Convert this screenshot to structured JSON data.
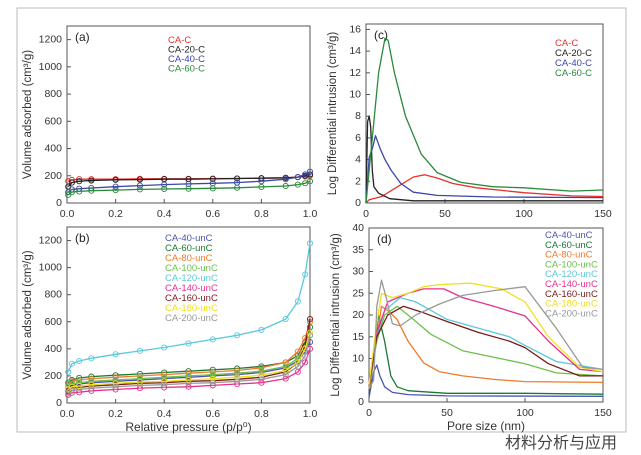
{
  "watermark": "材料分析与应用",
  "chart_data": [
    {
      "panel": "(a)",
      "type": "scatter-line",
      "xlabel": "",
      "ylabel": "Volume adsorbed (cm³/g)",
      "xlim": [
        0,
        1.0
      ],
      "ylim": [
        0,
        1300
      ],
      "xticks": [
        "0.0",
        "0.2",
        "0.4",
        "0.6",
        "0.8",
        "1.0"
      ],
      "yticks": [
        "0",
        "200",
        "400",
        "600",
        "800",
        "1000",
        "1200"
      ],
      "x": [
        0.005,
        0.02,
        0.05,
        0.1,
        0.2,
        0.3,
        0.4,
        0.5,
        0.6,
        0.7,
        0.8,
        0.9,
        0.95,
        0.98,
        1.0
      ],
      "series": [
        {
          "name": "CA-C",
          "color": "#e8322d",
          "values": [
            160,
            170,
            175,
            175,
            175,
            178,
            178,
            178,
            180,
            180,
            182,
            185,
            190,
            195,
            200
          ]
        },
        {
          "name": "CA-20-C",
          "color": "#222222",
          "values": [
            120,
            150,
            160,
            165,
            170,
            172,
            175,
            175,
            177,
            180,
            182,
            185,
            190,
            200,
            210
          ]
        },
        {
          "name": "CA-40-C",
          "color": "#3a48a8",
          "values": [
            80,
            100,
            105,
            110,
            120,
            128,
            135,
            140,
            145,
            150,
            160,
            175,
            190,
            210,
            230
          ]
        },
        {
          "name": "CA-60-C",
          "color": "#2a8a3c",
          "values": [
            60,
            80,
            85,
            90,
            95,
            100,
            103,
            105,
            108,
            112,
            118,
            125,
            135,
            145,
            160
          ]
        }
      ]
    },
    {
      "panel": "(c)",
      "type": "line",
      "xlabel": "",
      "ylabel": "Log Differential intrusion (cm³/g)",
      "xlim": [
        0,
        150
      ],
      "ylim": [
        0,
        16.5
      ],
      "xticks": [
        "0",
        "50",
        "100",
        "150"
      ],
      "yticks": [
        "0",
        "2",
        "4",
        "6",
        "8",
        "10",
        "12",
        "14",
        "16"
      ],
      "series": [
        {
          "name": "CA-C",
          "color": "#e8322d",
          "points": [
            [
              0,
              0
            ],
            [
              2,
              0.3
            ],
            [
              10,
              0.6
            ],
            [
              20,
              1.5
            ],
            [
              30,
              2.4
            ],
            [
              37,
              2.6
            ],
            [
              45,
              2.3
            ],
            [
              55,
              1.8
            ],
            [
              70,
              1.4
            ],
            [
              100,
              0.95
            ],
            [
              130,
              0.65
            ],
            [
              150,
              0.6
            ]
          ]
        },
        {
          "name": "CA-20-C",
          "color": "#222222",
          "points": [
            [
              0,
              0
            ],
            [
              1,
              7.5
            ],
            [
              2,
              8
            ],
            [
              3,
              7
            ],
            [
              4,
              3
            ],
            [
              5,
              1.5
            ],
            [
              8,
              0.9
            ],
            [
              15,
              0.4
            ],
            [
              30,
              0.2
            ],
            [
              60,
              0.2
            ],
            [
              150,
              0.2
            ]
          ]
        },
        {
          "name": "CA-40-C",
          "color": "#3a48a8",
          "points": [
            [
              0,
              0
            ],
            [
              2,
              4.2
            ],
            [
              4,
              5
            ],
            [
              6,
              6.2
            ],
            [
              9,
              5
            ],
            [
              12,
              4
            ],
            [
              16,
              3
            ],
            [
              22,
              1.8
            ],
            [
              30,
              1
            ],
            [
              45,
              0.7
            ],
            [
              80,
              0.55
            ],
            [
              150,
              0.5
            ]
          ]
        },
        {
          "name": "CA-60-C",
          "color": "#2a8a3c",
          "points": [
            [
              0,
              0
            ],
            [
              4,
              6
            ],
            [
              8,
              12
            ],
            [
              12,
              15.2
            ],
            [
              14,
              15
            ],
            [
              18,
              12
            ],
            [
              25,
              8
            ],
            [
              35,
              4.5
            ],
            [
              45,
              2.8
            ],
            [
              60,
              1.9
            ],
            [
              80,
              1.5
            ],
            [
              100,
              1.4
            ],
            [
              130,
              1.1
            ],
            [
              150,
              1.2
            ]
          ]
        }
      ]
    },
    {
      "panel": "(b)",
      "type": "scatter-line",
      "xlabel": "Relative pressure (p/p⁰)",
      "ylabel": "Volume adsorbed (cm³/g)",
      "xlim": [
        0,
        1.0
      ],
      "ylim": [
        0,
        1300
      ],
      "xticks": [
        "0.0",
        "0.2",
        "0.4",
        "0.6",
        "0.8",
        "1.0"
      ],
      "yticks": [
        "0",
        "200",
        "400",
        "600",
        "800",
        "1000",
        "1200"
      ],
      "x": [
        0.005,
        0.02,
        0.05,
        0.1,
        0.2,
        0.3,
        0.4,
        0.5,
        0.6,
        0.7,
        0.8,
        0.9,
        0.95,
        0.98,
        1.0
      ],
      "series": [
        {
          "name": "CA-40-unC",
          "color": "#4a55b0",
          "values": [
            100,
            130,
            140,
            150,
            160,
            170,
            180,
            190,
            200,
            210,
            225,
            260,
            310,
            380,
            450
          ]
        },
        {
          "name": "CA-60-unC",
          "color": "#1a7a35",
          "values": [
            150,
            170,
            185,
            195,
            205,
            215,
            225,
            235,
            245,
            255,
            270,
            300,
            350,
            450,
            560
          ]
        },
        {
          "name": "CA-80-unC",
          "color": "#f07a2a",
          "values": [
            140,
            160,
            170,
            180,
            190,
            200,
            210,
            220,
            230,
            240,
            260,
            300,
            380,
            480,
            600
          ]
        },
        {
          "name": "CA-100-unC",
          "color": "#6cc04a",
          "values": [
            120,
            140,
            150,
            160,
            170,
            180,
            190,
            200,
            210,
            220,
            235,
            270,
            330,
            420,
            500
          ]
        },
        {
          "name": "CA-120-unC",
          "color": "#5ac8dc",
          "values": [
            230,
            290,
            310,
            330,
            360,
            385,
            410,
            440,
            470,
            500,
            540,
            620,
            750,
            950,
            1180
          ]
        },
        {
          "name": "CA-140-unC",
          "color": "#e8308f",
          "values": [
            60,
            75,
            80,
            90,
            100,
            110,
            115,
            120,
            130,
            140,
            150,
            180,
            230,
            300,
            400
          ]
        },
        {
          "name": "CA-160-unC",
          "color": "#7a1a1a",
          "values": [
            90,
            110,
            115,
            125,
            135,
            145,
            150,
            160,
            165,
            175,
            190,
            230,
            300,
            420,
            620
          ]
        },
        {
          "name": "CA-180-unC",
          "color": "#f0e020",
          "values": [
            100,
            120,
            125,
            135,
            145,
            155,
            160,
            170,
            180,
            190,
            205,
            240,
            300,
            400,
            520
          ]
        },
        {
          "name": "CA-200-unC",
          "color": "#999999",
          "values": [
            70,
            90,
            100,
            110,
            120,
            130,
            135,
            145,
            150,
            160,
            175,
            210,
            270,
            350,
            500
          ]
        }
      ]
    },
    {
      "panel": "(d)",
      "type": "line",
      "xlabel": "Pore size (nm)",
      "ylabel": "Log Differential intrusion (cm³/g)",
      "xlim": [
        0,
        150
      ],
      "ylim": [
        0,
        40
      ],
      "xticks": [
        "0",
        "50",
        "100",
        "150"
      ],
      "yticks": [
        "0",
        "5",
        "10",
        "15",
        "20",
        "25",
        "30",
        "35",
        "40"
      ],
      "series": [
        {
          "name": "CA-40-unC",
          "color": "#4a55b0",
          "points": [
            [
              0,
              1
            ],
            [
              3,
              7
            ],
            [
              5,
              8.5
            ],
            [
              7,
              6
            ],
            [
              10,
              3.5
            ],
            [
              15,
              2.2
            ],
            [
              25,
              1.7
            ],
            [
              50,
              1.4
            ],
            [
              150,
              1.3
            ]
          ]
        },
        {
          "name": "CA-60-unC",
          "color": "#1a7a35",
          "points": [
            [
              0,
              2
            ],
            [
              3,
              10
            ],
            [
              6,
              20
            ],
            [
              10,
              14
            ],
            [
              14,
              6
            ],
            [
              18,
              3.5
            ],
            [
              25,
              2.6
            ],
            [
              50,
              2
            ],
            [
              100,
              2
            ],
            [
              150,
              1.8
            ]
          ]
        },
        {
          "name": "CA-80-unC",
          "color": "#f07a2a",
          "points": [
            [
              0,
              3
            ],
            [
              4,
              12
            ],
            [
              8,
              22
            ],
            [
              12,
              21
            ],
            [
              18,
              19
            ],
            [
              25,
              14
            ],
            [
              35,
              9
            ],
            [
              45,
              7
            ],
            [
              60,
              6
            ],
            [
              80,
              5.2
            ],
            [
              100,
              4.7
            ],
            [
              150,
              4.5
            ]
          ]
        },
        {
          "name": "CA-100-unC",
          "color": "#6cc04a",
          "points": [
            [
              0,
              4
            ],
            [
              5,
              14
            ],
            [
              10,
              20
            ],
            [
              18,
              22
            ],
            [
              25,
              20
            ],
            [
              40,
              15.5
            ],
            [
              60,
              11.8
            ],
            [
              80,
              10.3
            ],
            [
              100,
              8.8
            ],
            [
              120,
              6.7
            ],
            [
              150,
              6
            ]
          ]
        },
        {
          "name": "CA-120-unC",
          "color": "#5ac8dc",
          "points": [
            [
              0,
              4
            ],
            [
              5,
              15
            ],
            [
              10,
              21
            ],
            [
              20,
              24
            ],
            [
              30,
              23
            ],
            [
              50,
              19
            ],
            [
              70,
              17
            ],
            [
              90,
              15
            ],
            [
              100,
              13
            ],
            [
              120,
              9.3
            ],
            [
              150,
              7.5
            ]
          ]
        },
        {
          "name": "CA-140-unC",
          "color": "#e8308f",
          "points": [
            [
              0,
              4
            ],
            [
              5,
              16
            ],
            [
              12,
              23
            ],
            [
              25,
              25
            ],
            [
              35,
              26
            ],
            [
              48,
              26
            ],
            [
              60,
              24
            ],
            [
              80,
              22
            ],
            [
              100,
              19.8
            ],
            [
              115,
              14
            ],
            [
              135,
              7.5
            ],
            [
              150,
              7
            ]
          ]
        },
        {
          "name": "CA-160-unC",
          "color": "#7a1a1a",
          "points": [
            [
              0,
              4
            ],
            [
              5,
              15
            ],
            [
              12,
              20
            ],
            [
              22,
              22
            ],
            [
              35,
              20.5
            ],
            [
              50,
              18.5
            ],
            [
              70,
              16
            ],
            [
              90,
              14
            ],
            [
              100,
              12.5
            ],
            [
              115,
              8.8
            ],
            [
              135,
              6
            ],
            [
              150,
              6
            ]
          ]
        },
        {
          "name": "CA-180-unC",
          "color": "#f0e020",
          "points": [
            [
              0,
              4
            ],
            [
              5,
              18
            ],
            [
              8,
              25
            ],
            [
              15,
              24
            ],
            [
              25,
              25
            ],
            [
              35,
              26.5
            ],
            [
              45,
              27
            ],
            [
              65,
              27.3
            ],
            [
              85,
              26
            ],
            [
              100,
              23
            ],
            [
              115,
              15
            ],
            [
              135,
              8
            ],
            [
              150,
              7
            ]
          ]
        },
        {
          "name": "CA-200-unC",
          "color": "#999999",
          "points": [
            [
              0,
              3
            ],
            [
              3,
              5
            ],
            [
              5,
              22
            ],
            [
              8,
              28
            ],
            [
              11,
              24
            ],
            [
              15,
              18
            ],
            [
              20,
              17.5
            ],
            [
              30,
              20
            ],
            [
              45,
              22.5
            ],
            [
              60,
              24.5
            ],
            [
              80,
              25.6
            ],
            [
              100,
              26.5
            ],
            [
              120,
              17
            ],
            [
              137,
              8
            ],
            [
              150,
              7.5
            ]
          ]
        }
      ]
    }
  ]
}
